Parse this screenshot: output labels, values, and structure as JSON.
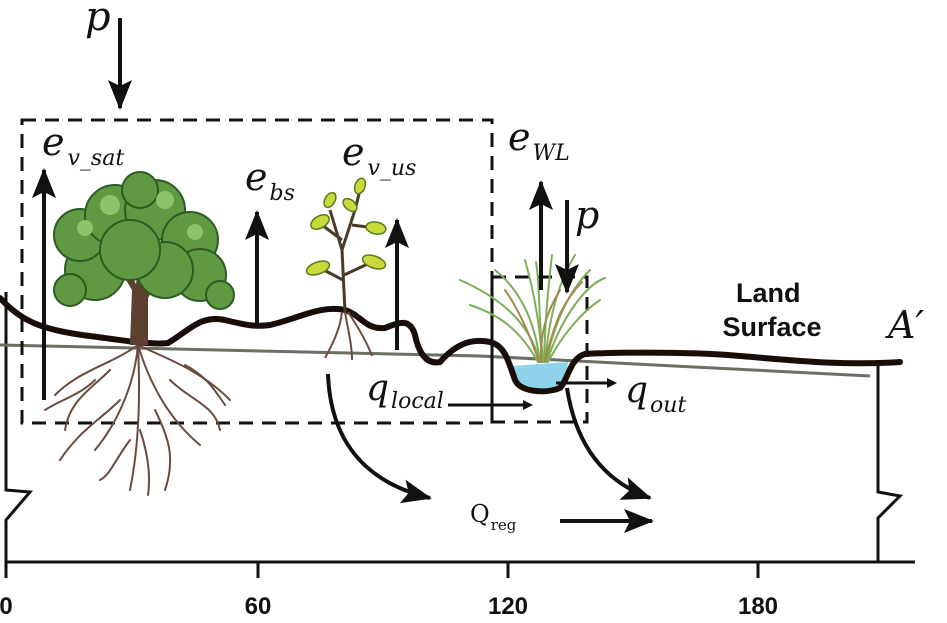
{
  "labels": {
    "p_top": "p",
    "e_v_sat": {
      "base": "e",
      "sub": "v_sat"
    },
    "e_bs": {
      "base": "e",
      "sub": "bs"
    },
    "e_v_us": {
      "base": "e",
      "sub": "v_us"
    },
    "e_WL": {
      "base": "e",
      "sub": "WL"
    },
    "p_wetland": "p",
    "land_surface": [
      "Land",
      "Surface"
    ],
    "A_prime": "A′",
    "q_local": {
      "base": "q",
      "sub": "local"
    },
    "q_out": {
      "base": "q",
      "sub": "out"
    },
    "Q_reg": {
      "base": "Q",
      "sub": "reg"
    }
  },
  "axis": {
    "ticks": [
      "0",
      "60",
      "120",
      "180"
    ]
  },
  "colors": {
    "land_line": "#1a0d08",
    "water_table": "#6b6f66",
    "water": "#8fd3ea",
    "tree_foliage": "#5f9a43",
    "roots": "#6a4b3f",
    "reed": "#7fae5a"
  }
}
